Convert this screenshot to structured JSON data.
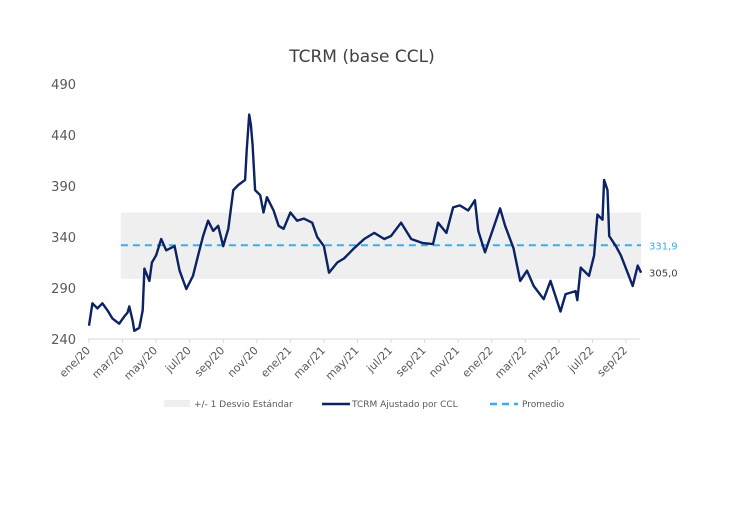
{
  "chart_data": {
    "type": "line",
    "title": "TCRM (base CCL)",
    "xlabel": "",
    "ylabel": "",
    "ylim": [
      240,
      490
    ],
    "yticks": [
      "240",
      "290",
      "340",
      "390",
      "440",
      "490"
    ],
    "ytick_values": [
      240,
      290,
      340,
      390,
      440,
      490
    ],
    "x_unit": "months since ene/20",
    "xlim": [
      0,
      32.9
    ],
    "xticks": [
      "ene/20",
      "mar/20",
      "may/20",
      "jul/20",
      "sep/20",
      "nov/20",
      "ene/21",
      "mar/21",
      "may/21",
      "jul/21",
      "sep/21",
      "nov/21",
      "ene/22",
      "mar/22",
      "may/22",
      "jul/22",
      "sep/22"
    ],
    "grid": false,
    "legend_position": "bottom",
    "legend": [
      "+/- 1 Desvio Estándar",
      "TCRM Ajustado por CCL",
      "Promedio"
    ],
    "colors": {
      "series": "#0b2263",
      "mean": "#3aaee8",
      "band": "#efefef",
      "axis": "#d9d9d9",
      "text": "#595959"
    },
    "band": {
      "name": "+/- 1 Desvio Estándar",
      "lower": 299,
      "upper": 364,
      "x_start": 1.9
    },
    "mean": {
      "name": "Promedio",
      "value": 331.9,
      "label": "331,9"
    },
    "last_value_label": "305,0",
    "series": [
      {
        "name": "TCRM Ajustado por CCL",
        "x": [
          0,
          0.2,
          0.5,
          0.8,
          1.1,
          1.4,
          1.8,
          2.1,
          2.3,
          2.4,
          2.6,
          2.7,
          3.0,
          3.2,
          3.3,
          3.6,
          3.75,
          4.0,
          4.3,
          4.6,
          5.1,
          5.4,
          5.8,
          6.2,
          6.5,
          6.8,
          7.1,
          7.4,
          7.7,
          8.0,
          8.3,
          8.6,
          8.9,
          9.3,
          9.4,
          9.55,
          9.65,
          9.75,
          9.9,
          10.2,
          10.4,
          10.6,
          11.0,
          11.3,
          11.6,
          12.0,
          12.4,
          12.8,
          13.3,
          13.6,
          14.0,
          14.3,
          14.8,
          15.2,
          15.8,
          16.4,
          17.0,
          17.6,
          18.0,
          18.6,
          19.2,
          19.9,
          20.5,
          20.8,
          21.3,
          21.7,
          22.1,
          22.6,
          23.0,
          23.2,
          23.6,
          24.0,
          24.5,
          24.8,
          25.3,
          25.7,
          26.1,
          26.5,
          27.1,
          27.5,
          27.8,
          28.1,
          28.4,
          29.0,
          29.1,
          29.3,
          29.8,
          30.1,
          30.3,
          30.6,
          30.7,
          30.9,
          31.0,
          31.4,
          31.7,
          32.1,
          32.4,
          32.7,
          32.9
        ],
        "values": [
          253,
          275,
          270,
          275,
          268,
          260,
          255,
          262,
          266,
          272,
          258,
          248,
          251,
          268,
          309,
          297,
          315,
          322,
          338,
          327,
          331,
          307,
          289,
          302,
          322,
          341,
          356,
          346,
          351,
          331,
          348,
          386,
          391,
          396,
          425,
          460,
          450,
          430,
          386,
          381,
          364,
          379,
          366,
          351,
          348,
          364,
          356,
          358,
          354,
          340,
          331,
          305,
          315,
          319,
          329,
          338,
          344,
          338,
          341,
          354,
          338,
          334,
          333,
          354,
          344,
          369,
          371,
          366,
          376,
          346,
          325,
          344,
          368,
          351,
          329,
          297,
          307,
          292,
          279,
          297,
          282,
          267,
          284,
          287,
          278,
          310,
          302,
          322,
          362,
          357,
          396,
          386,
          341,
          331,
          322,
          305,
          292,
          312,
          305
        ]
      }
    ]
  }
}
